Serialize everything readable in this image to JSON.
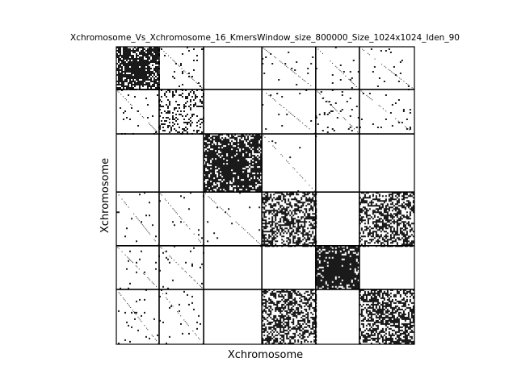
{
  "chart_data": {
    "type": "heatmap",
    "title": "Xchromosome_Vs_Xchromosome_16_KmersWindow_size_800000_Size_1024x1024_Iden_90",
    "xlabel": "Xchromosome",
    "ylabel": "Xchromosome",
    "matrix_size": 1024,
    "block_edges": [
      0,
      147,
      300,
      500,
      685,
      835,
      1024
    ],
    "grid": true,
    "block_density": [
      [
        0.85,
        0.03,
        0.0,
        0.02,
        0.02,
        0.02
      ],
      [
        0.03,
        0.25,
        0.0,
        0.01,
        0.03,
        0.02
      ],
      [
        0.0,
        0.0,
        0.85,
        0.01,
        0.0,
        0.0
      ],
      [
        0.02,
        0.01,
        0.01,
        0.55,
        0.0,
        0.55
      ],
      [
        0.02,
        0.03,
        0.0,
        0.0,
        0.9,
        0.0
      ],
      [
        0.02,
        0.02,
        0.0,
        0.55,
        0.0,
        0.6
      ]
    ]
  }
}
